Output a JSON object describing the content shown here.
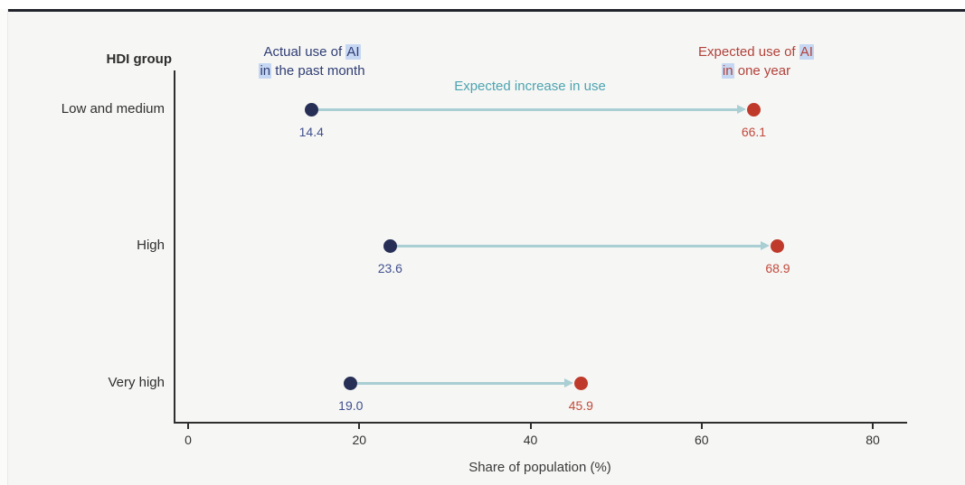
{
  "chart_data": {
    "type": "dumbbell",
    "categories": [
      "Low and medium",
      "High",
      "Very high"
    ],
    "series": [
      {
        "name": "Actual use of AI in the past month",
        "values": [
          14.4,
          23.6,
          19.0
        ],
        "dot_color": "#272f56",
        "label_color": "#41518f"
      },
      {
        "name": "Expected use of AI in one year",
        "values": [
          66.1,
          68.9,
          45.9
        ],
        "dot_color": "#bf3a2b",
        "label_color": "#c14b3d"
      }
    ],
    "xticks": [
      0,
      20,
      40,
      60,
      80
    ],
    "xlim": [
      0,
      84
    ],
    "xlabel": "Share of population (%)",
    "ylabel_header": "HDI group",
    "annotation": "Expected increase in use",
    "arrow_color": "#a9ced3",
    "grid": false,
    "legend_position": "top-inline"
  },
  "axis": {
    "header": "HDI group",
    "xlabel": "Share of population (%)"
  },
  "annotations": {
    "actual": {
      "line1_pre": "Actual use of ",
      "line1_hl": "AI",
      "line2_hl": "in",
      "line2_post": " the past month"
    },
    "expected": {
      "line1_pre": "Expected use of ",
      "line1_hl": "AI",
      "line2_hl": "in",
      "line2_post": " one year"
    },
    "increase_label": "Expected increase in use"
  },
  "colors": {
    "background": "#f6f6f4",
    "top_rule": "#22242c",
    "axis": "#2e2e2e",
    "actual_text": "#2f3d74",
    "expected_text": "#b2423a",
    "increase_text": "#4da4b1",
    "highlight": "#c5d7f2"
  }
}
